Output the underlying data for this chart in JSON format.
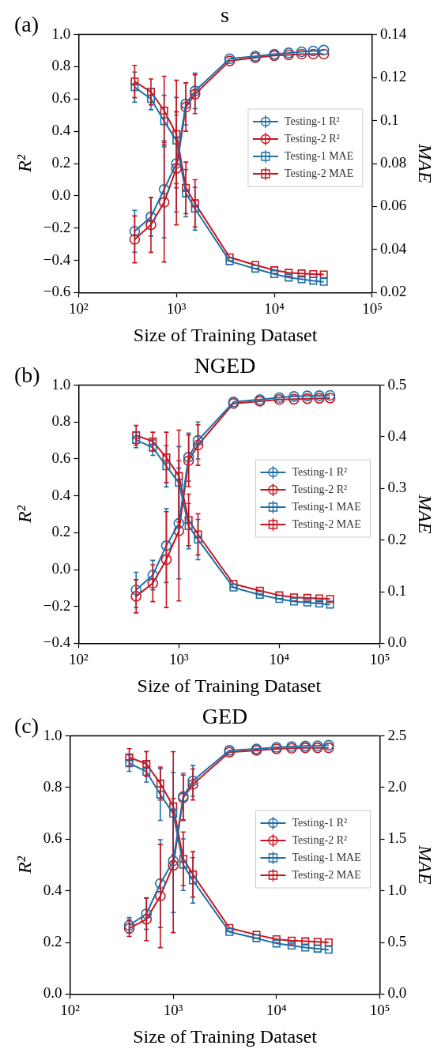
{
  "chart_data": [
    {
      "type": "line",
      "title": "s",
      "xlabel": "Size of Training Dataset",
      "ylabel": "R²",
      "y2label": "MAE",
      "annotations": [
        "(a)"
      ],
      "log": "x",
      "grid": false,
      "legend": "right",
      "line_style": "solid",
      "x": [
        375,
        550,
        750,
        1000,
        1250,
        1550,
        3500,
        6400,
        10000,
        14000,
        19000,
        25000,
        32000
      ],
      "xlim": [
        100,
        100000
      ],
      "xticks": [
        {
          "value": 100,
          "label": "10²"
        },
        {
          "value": 1000,
          "label": "10³"
        },
        {
          "value": 10000,
          "label": "10⁴"
        },
        {
          "value": 100000,
          "label": "10⁵"
        }
      ],
      "ylim": [
        -0.6,
        1.0
      ],
      "yticks": [
        {
          "value": -0.6,
          "label": "−0.6"
        },
        {
          "value": -0.4,
          "label": "−0.4"
        },
        {
          "value": -0.2,
          "label": "−0.2"
        },
        {
          "value": 0,
          "label": "0.0"
        },
        {
          "value": 0.2,
          "label": "0.2"
        },
        {
          "value": 0.4,
          "label": "0.4"
        },
        {
          "value": 0.6,
          "label": "0.6"
        },
        {
          "value": 0.8,
          "label": "0.8"
        },
        {
          "value": 1.0,
          "label": "1.0"
        }
      ],
      "y2lim": [
        0.02,
        0.14
      ],
      "y2ticks": [
        0.02,
        0.04,
        0.06,
        0.08,
        0.1,
        0.12,
        0.14
      ],
      "series": [
        {
          "name": "Testing-1 R²",
          "color": "#1f6fa6",
          "marker": "circle",
          "values": [
            -0.22,
            -0.13,
            0.04,
            0.2,
            0.57,
            0.65,
            0.85,
            0.865,
            0.878,
            0.886,
            0.893,
            0.898,
            0.903
          ],
          "errors": [
            0.13,
            0.12,
            0.3,
            0.3,
            0.13,
            0.11,
            null,
            null,
            null,
            null,
            null,
            null,
            null
          ]
        },
        {
          "name": "Testing-2 R²",
          "color": "#c8141e",
          "marker": "circle",
          "values": [
            -0.27,
            -0.18,
            -0.04,
            0.17,
            0.55,
            0.63,
            0.836,
            0.856,
            0.869,
            0.873,
            0.878,
            0.878,
            0.878
          ],
          "errors": [
            0.145,
            0.17,
            0.37,
            0.35,
            0.15,
            0.12,
            null,
            null,
            null,
            null,
            null,
            null,
            null
          ]
        },
        {
          "name": "Testing-1 MAE",
          "color": "#1f6fa6",
          "marker": "square",
          "axis": "y2",
          "values": [
            0.1155,
            0.11,
            0.0997,
            0.0907,
            0.0662,
            0.059,
            0.0346,
            0.0311,
            0.0286,
            0.027,
            0.0262,
            0.0255,
            0.025
          ],
          "errors": [
            0.007,
            0.005,
            0.012,
            0.02,
            0.011,
            0.01,
            null,
            null,
            null,
            null,
            null,
            null,
            null
          ]
        },
        {
          "name": "Testing-2 MAE",
          "color": "#c8141e",
          "marker": "square",
          "axis": "y2",
          "values": [
            0.1181,
            0.1133,
            0.1046,
            0.0937,
            0.0687,
            0.0615,
            0.0364,
            0.0328,
            0.0304,
            0.0292,
            0.0289,
            0.0286,
            0.0284
          ],
          "errors": [
            0.0075,
            0.006,
            0.016,
            0.025,
            0.012,
            0.011,
            null,
            null,
            null,
            null,
            null,
            null,
            null
          ]
        }
      ]
    },
    {
      "type": "line",
      "title": "NGED",
      "xlabel": "Size of Training Dataset",
      "ylabel": "R²",
      "y2label": "MAE",
      "annotations": [
        "(b)"
      ],
      "log": "x",
      "grid": false,
      "legend": "right",
      "line_style": "solid",
      "x": [
        375,
        550,
        750,
        1000,
        1250,
        1550,
        3500,
        6400,
        10000,
        14000,
        19000,
        25000,
        32000
      ],
      "xlim": [
        100,
        100000
      ],
      "xticks": [
        {
          "value": 100,
          "label": "10²"
        },
        {
          "value": 1000,
          "label": "10³"
        },
        {
          "value": 10000,
          "label": "10⁴"
        },
        {
          "value": 100000,
          "label": "10⁵"
        }
      ],
      "ylim": [
        -0.4,
        1.0
      ],
      "yticks": [
        {
          "value": -0.4,
          "label": "−0.4"
        },
        {
          "value": -0.2,
          "label": "−0.2"
        },
        {
          "value": 0,
          "label": "0.0"
        },
        {
          "value": 0.2,
          "label": "0.2"
        },
        {
          "value": 0.4,
          "label": "0.4"
        },
        {
          "value": 0.6,
          "label": "0.6"
        },
        {
          "value": 0.8,
          "label": "0.8"
        },
        {
          "value": 1.0,
          "label": "1.0"
        }
      ],
      "y2lim": [
        0,
        0.5
      ],
      "y2ticks": [
        {
          "value": 0,
          "label": "0.0"
        },
        0.1,
        0.2,
        0.3,
        0.4,
        0.5
      ],
      "series": [
        {
          "name": "Testing-1 R²",
          "color": "#1f6fa6",
          "marker": "circle",
          "values": [
            -0.11,
            -0.03,
            0.13,
            0.25,
            0.61,
            0.7,
            0.909,
            0.922,
            0.933,
            0.939,
            0.942,
            0.943,
            0.945
          ],
          "errors": [
            0.095,
            0.08,
            0.2,
            0.3,
            0.13,
            0.1,
            null,
            null,
            null,
            null,
            null,
            null,
            null
          ]
        },
        {
          "name": "Testing-2 R²",
          "color": "#c8141e",
          "marker": "circle",
          "values": [
            -0.145,
            -0.074,
            0.054,
            0.21,
            0.59,
            0.675,
            0.901,
            0.913,
            0.922,
            0.924,
            0.927,
            0.929,
            0.93
          ],
          "errors": [
            0.09,
            0.1,
            0.26,
            0.38,
            0.14,
            0.11,
            null,
            null,
            null,
            null,
            null,
            null,
            null
          ]
        },
        {
          "name": "Testing-1 MAE",
          "color": "#1f6fa6",
          "marker": "square",
          "axis": "y2",
          "values": [
            0.394,
            0.379,
            0.343,
            0.311,
            0.227,
            0.201,
            0.108,
            0.094,
            0.086,
            0.081,
            0.079,
            0.077,
            0.075
          ],
          "errors": [
            0.015,
            0.015,
            0.04,
            0.07,
            0.044,
            0.039,
            null,
            null,
            null,
            null,
            null,
            null,
            null
          ]
        },
        {
          "name": "Testing-2 MAE",
          "color": "#c8141e",
          "marker": "square",
          "axis": "y2",
          "values": [
            0.403,
            0.391,
            0.36,
            0.324,
            0.239,
            0.211,
            0.115,
            0.102,
            0.093,
            0.089,
            0.088,
            0.087,
            0.086
          ],
          "errors": [
            0.019,
            0.018,
            0.049,
            0.089,
            0.05,
            0.04,
            null,
            null,
            null,
            null,
            null,
            null,
            null
          ]
        }
      ]
    },
    {
      "type": "line",
      "title": "GED",
      "xlabel": "Size of Training Dataset",
      "ylabel": "R²",
      "y2label": "MAE",
      "annotations": [
        "(c)"
      ],
      "log": "x",
      "grid": false,
      "legend": "right",
      "line_style": "solid",
      "x": [
        375,
        550,
        750,
        1000,
        1250,
        1550,
        3500,
        6400,
        10000,
        14000,
        19000,
        25000,
        32000
      ],
      "xlim": [
        100,
        100000
      ],
      "xticks": [
        {
          "value": 100,
          "label": "10²"
        },
        {
          "value": 1000,
          "label": "10³"
        },
        {
          "value": 10000,
          "label": "10⁴"
        },
        {
          "value": 100000,
          "label": "10⁵"
        }
      ],
      "ylim": [
        0,
        1.0
      ],
      "yticks": [
        {
          "value": 0,
          "label": "0.0"
        },
        0.2,
        0.4,
        0.6,
        0.8,
        {
          "value": 1.0,
          "label": "1.0"
        }
      ],
      "y2lim": [
        0,
        2.5
      ],
      "y2ticks": [
        {
          "value": 0,
          "label": "0.0"
        },
        0.5,
        {
          "value": 1,
          "label": "1.0"
        },
        1.5,
        {
          "value": 2,
          "label": "2.0"
        },
        2.5
      ],
      "series": [
        {
          "name": "Testing-1 R²",
          "color": "#1f6fa6",
          "marker": "circle",
          "values": [
            0.266,
            0.311,
            0.428,
            0.516,
            0.765,
            0.826,
            0.944,
            0.95,
            0.956,
            0.959,
            0.961,
            0.962,
            0.964
          ],
          "errors": [
            0.03,
            0.06,
            0.17,
            0.2,
            0.09,
            0.06,
            null,
            null,
            null,
            null,
            null,
            null,
            null
          ]
        },
        {
          "name": "Testing-2 R²",
          "color": "#c8141e",
          "marker": "circle",
          "values": [
            0.255,
            0.29,
            0.38,
            0.498,
            0.76,
            0.812,
            0.937,
            0.944,
            0.95,
            0.952,
            0.954,
            0.954,
            0.954
          ],
          "errors": [
            0.032,
            0.083,
            0.2,
            0.26,
            0.088,
            0.06,
            null,
            null,
            null,
            null,
            null,
            null,
            null
          ]
        },
        {
          "name": "Testing-1 MAE",
          "color": "#1f6fa6",
          "marker": "square",
          "axis": "y2",
          "values": [
            2.236,
            2.153,
            1.932,
            1.747,
            1.253,
            1.101,
            0.602,
            0.541,
            0.49,
            0.47,
            0.45,
            0.44,
            0.43
          ],
          "errors": [
            0.08,
            0.1,
            0.25,
            0.4,
            0.25,
            0.22,
            null,
            null,
            null,
            null,
            null,
            null,
            null
          ]
        },
        {
          "name": "Testing-2 MAE",
          "color": "#c8141e",
          "marker": "square",
          "axis": "y2",
          "values": [
            2.292,
            2.229,
            2.039,
            1.818,
            1.309,
            1.159,
            0.64,
            0.574,
            0.531,
            0.518,
            0.511,
            0.506,
            0.5
          ],
          "errors": [
            0.084,
            0.12,
            0.16,
            0.53,
            0.26,
            0.22,
            null,
            null,
            null,
            null,
            null,
            null,
            null
          ]
        }
      ]
    }
  ]
}
